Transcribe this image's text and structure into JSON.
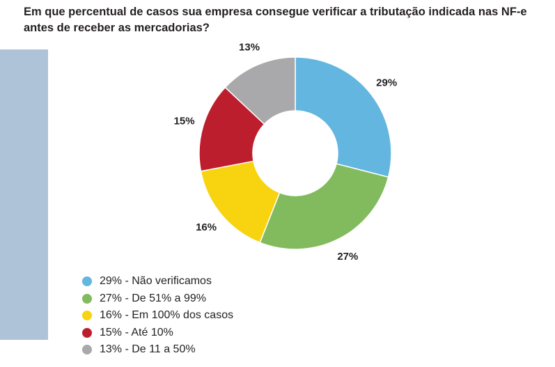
{
  "question": "Em que percentual de casos sua empresa consegue verificar a tributação indicada nas NF-e antes de receber as mercadorias?",
  "chart_data": {
    "type": "pie",
    "donut": true,
    "slices": [
      {
        "label": "29%",
        "legend": "29% - Não verificamos",
        "value": 29,
        "color": "#63b6df"
      },
      {
        "label": "27%",
        "legend": "27% - De 51% a 99%",
        "value": 27,
        "color": "#82bb5e"
      },
      {
        "label": "16%",
        "legend": "16% - Em 100% dos casos",
        "value": 16,
        "color": "#f8d30f"
      },
      {
        "label": "15%",
        "legend": "15% - Até 10%",
        "value": 15,
        "color": "#bd1e2d"
      },
      {
        "label": "13%",
        "legend": "13% - De 11 a 50%",
        "value": 13,
        "color": "#a9a9ac"
      }
    ],
    "legend_placement": "bottom-left"
  }
}
